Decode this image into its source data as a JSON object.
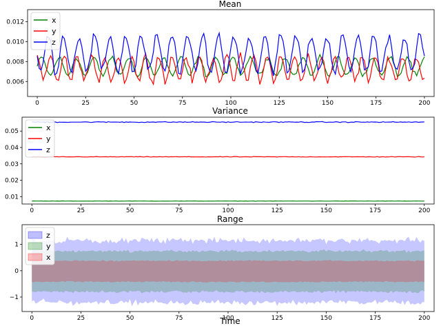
{
  "chart_data": [
    {
      "type": "line",
      "title": "Mean",
      "xlim": [
        -5,
        205
      ],
      "ylim": [
        0.0045,
        0.0132
      ],
      "xticks": [
        0,
        25,
        50,
        75,
        100,
        125,
        150,
        175,
        200
      ],
      "yticks": [
        0.006,
        0.008,
        0.01,
        0.012
      ],
      "ytick_labels": [
        "0.006",
        "0.008",
        "0.010",
        "0.012"
      ],
      "legend_position": "top-left",
      "series": [
        {
          "name": "x",
          "color": "#008000",
          "base": 0.0075,
          "amp": 0.0009,
          "period": 9,
          "noise": 0.00035
        },
        {
          "name": "y",
          "color": "#ff0000",
          "base": 0.0073,
          "amp": 0.0012,
          "period": 7,
          "noise": 0.0006
        },
        {
          "name": "z",
          "color": "#0000ff",
          "base": 0.0088,
          "amp": 0.0018,
          "period": 8,
          "noise": 0.0007
        }
      ]
    },
    {
      "type": "line",
      "title": "Variance",
      "xlim": [
        -5,
        205
      ],
      "ylim": [
        0.0055,
        0.0585
      ],
      "xticks": [
        0,
        25,
        50,
        75,
        100,
        125,
        150,
        175,
        200
      ],
      "yticks": [
        0.01,
        0.02,
        0.03,
        0.04,
        0.05
      ],
      "ytick_labels": [
        "0.01",
        "0.02",
        "0.03",
        "0.04",
        "0.05"
      ],
      "legend_position": "top-left",
      "series": [
        {
          "name": "x",
          "color": "#008000",
          "base": 0.0073,
          "amp": 0.0,
          "period": 10,
          "noise": 0.00012
        },
        {
          "name": "y",
          "color": "#ff0000",
          "base": 0.0343,
          "amp": 0.0,
          "period": 10,
          "noise": 0.00025
        },
        {
          "name": "z",
          "color": "#0000ff",
          "base": 0.0555,
          "amp": 0.0,
          "period": 10,
          "noise": 0.0004
        }
      ]
    },
    {
      "type": "area",
      "title": "Range",
      "xlabel": "Time",
      "xlim": [
        -5,
        205
      ],
      "ylim": [
        -1.55,
        1.75
      ],
      "xticks": [
        0,
        25,
        50,
        75,
        100,
        125,
        150,
        175,
        200
      ],
      "yticks": [
        -1,
        0,
        1
      ],
      "ytick_labels": [
        "−1",
        "0",
        "1"
      ],
      "legend_position": "top-left",
      "series": [
        {
          "name": "z",
          "color": "#0000ff",
          "upper": 1.15,
          "lower": -1.2,
          "noise": 0.17
        },
        {
          "name": "y",
          "color": "#008000",
          "upper": 0.75,
          "lower": -0.8,
          "noise": 0.08
        },
        {
          "name": "x",
          "color": "#ff0000",
          "upper": 0.38,
          "lower": -0.42,
          "noise": 0.04
        }
      ]
    }
  ]
}
